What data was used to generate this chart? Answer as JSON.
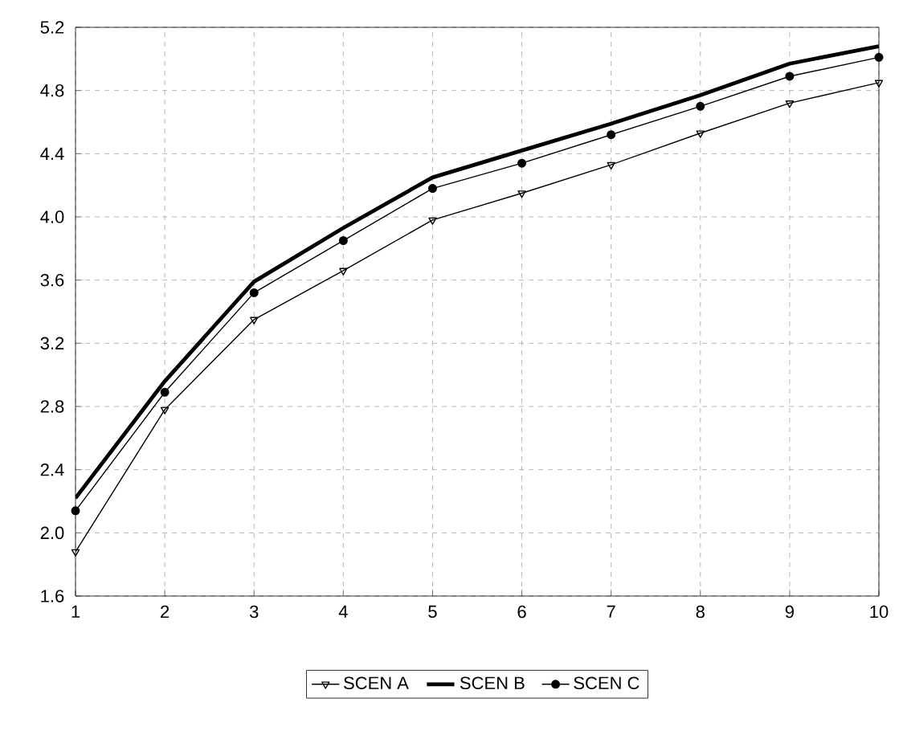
{
  "chart_data": {
    "type": "line",
    "categories": [
      "1",
      "2",
      "3",
      "4",
      "5",
      "6",
      "7",
      "8",
      "9",
      "10"
    ],
    "ylim": [
      1.6,
      5.2
    ],
    "yticks": [
      1.6,
      {
        "value": 2.0,
        "label": "2.0"
      },
      2.4,
      2.8,
      3.2,
      3.6,
      {
        "value": 4.0,
        "label": "4.0"
      },
      4.4,
      4.8,
      5.2
    ],
    "grid": true,
    "legend": "bottom",
    "series": [
      {
        "name": "SCEN A",
        "color": "#000000",
        "marker": "triangle",
        "values": [
          1.88,
          2.78,
          3.35,
          3.66,
          3.98,
          4.15,
          4.33,
          4.53,
          4.72,
          4.85
        ]
      },
      {
        "name": "SCEN B",
        "color": "#000000",
        "marker": "none",
        "values": [
          2.22,
          2.96,
          3.59,
          3.93,
          4.25,
          4.42,
          4.59,
          4.77,
          4.97,
          5.08
        ]
      },
      {
        "name": "SCEN C",
        "color": "#000000",
        "marker": "circle",
        "values": [
          2.14,
          2.89,
          3.52,
          3.85,
          4.18,
          4.34,
          4.52,
          4.7,
          4.89,
          5.01
        ]
      }
    ]
  }
}
